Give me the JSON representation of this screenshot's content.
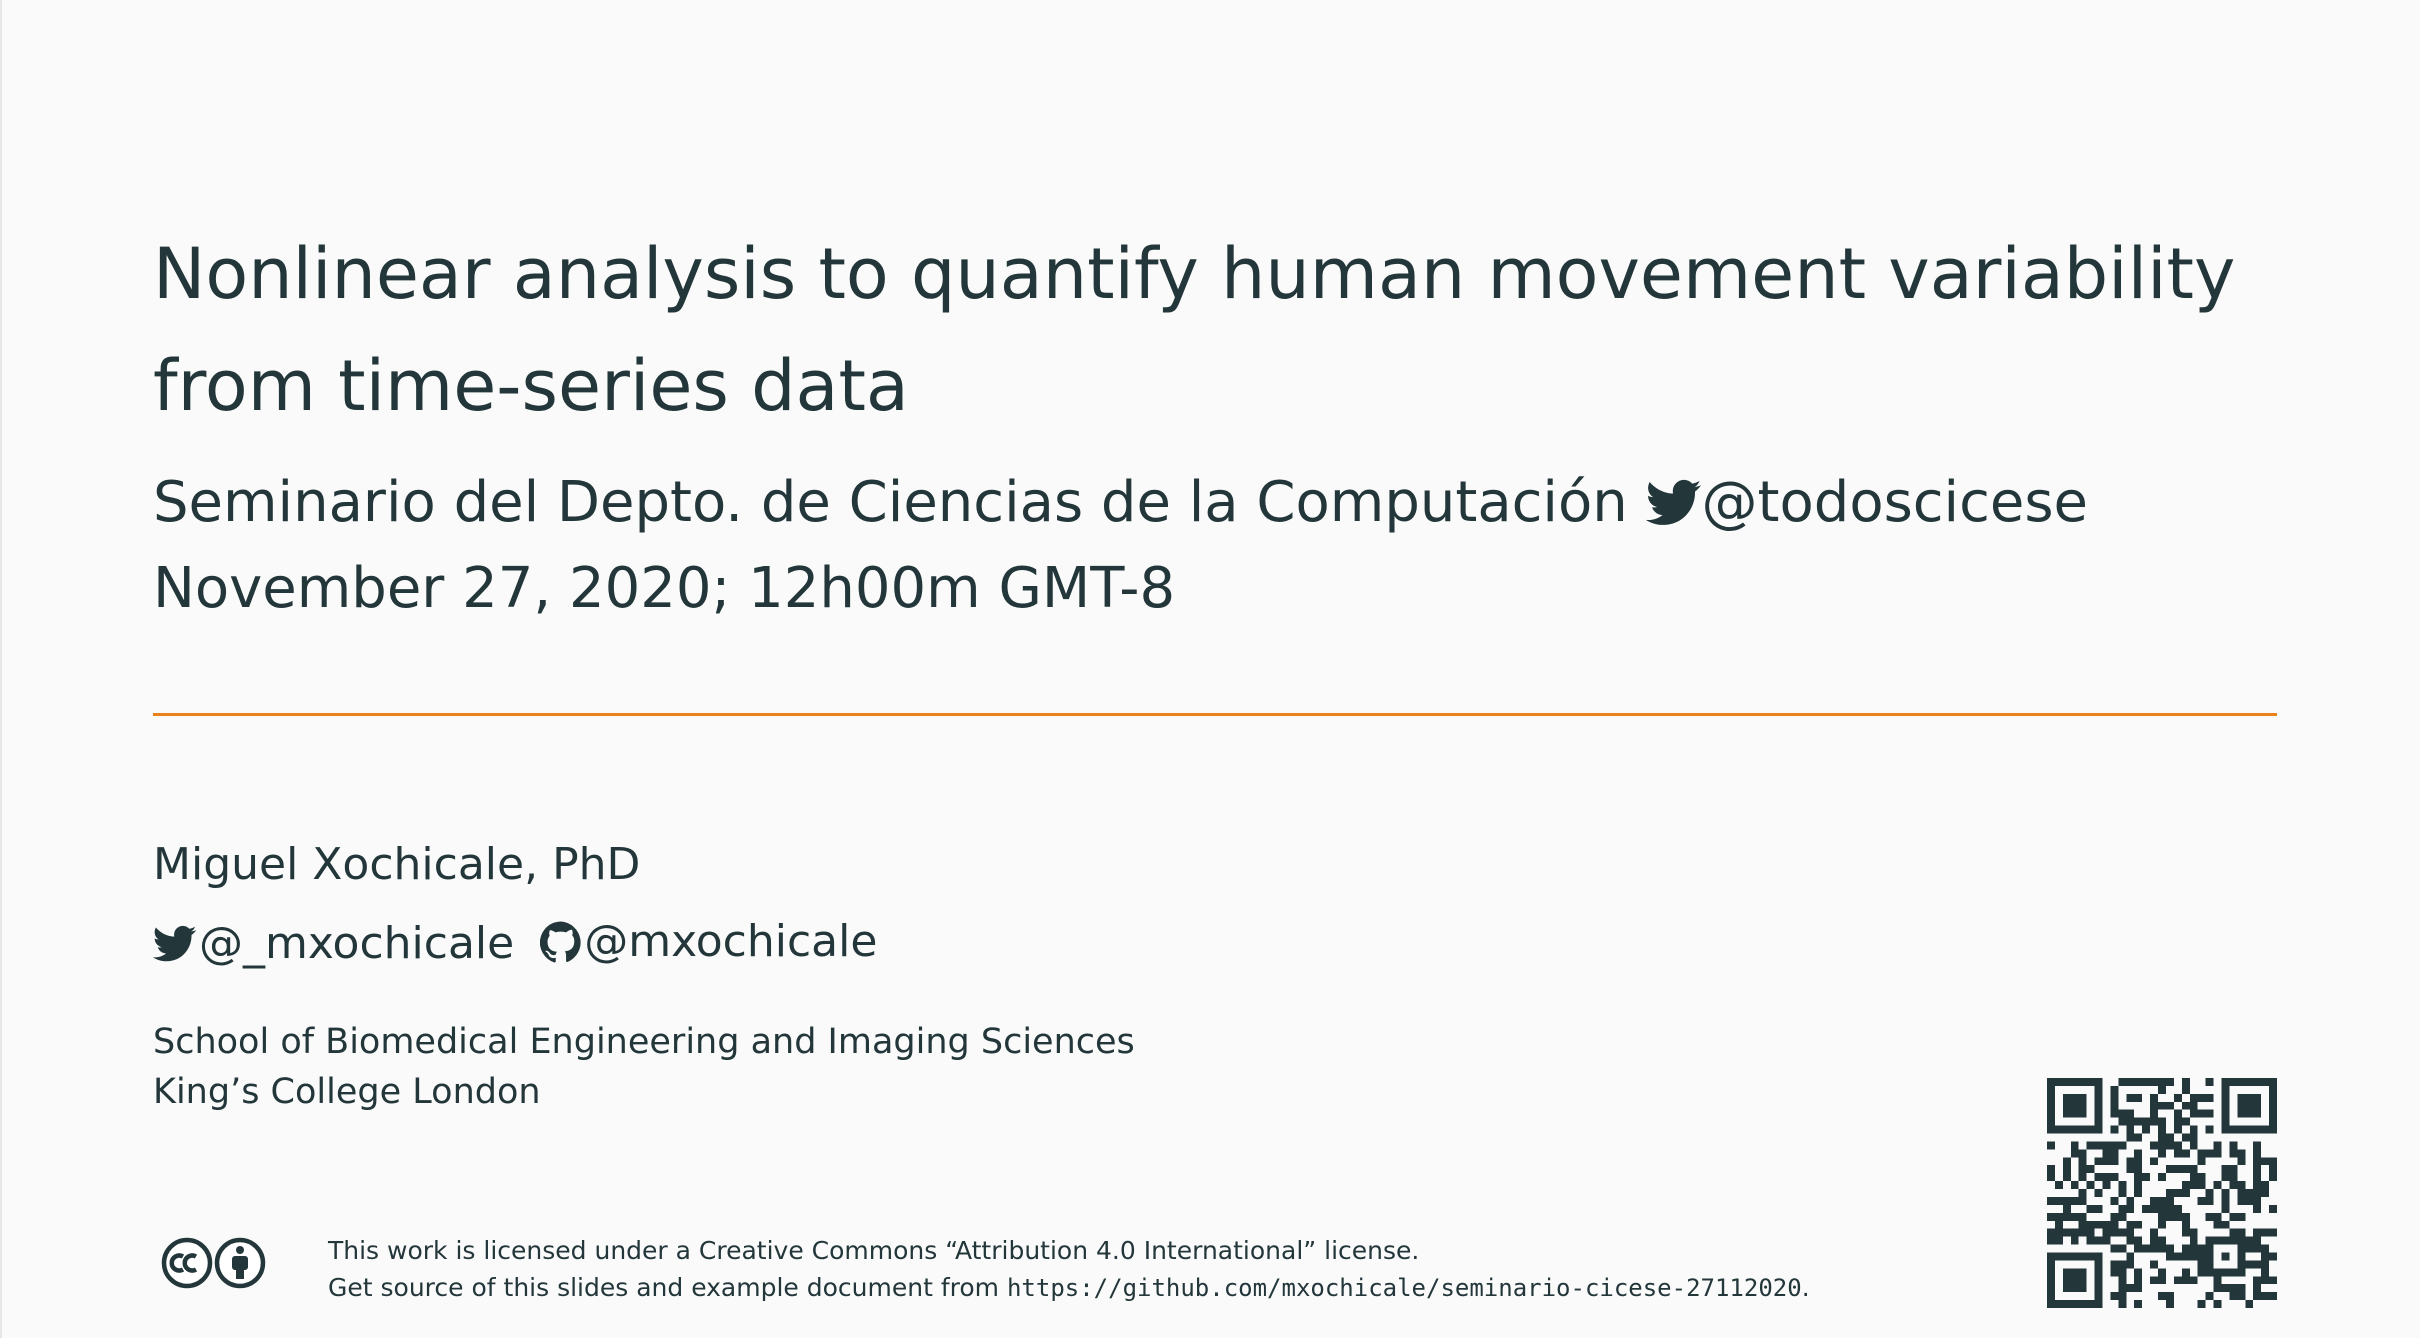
{
  "title": {
    "line1": "Nonlinear analysis to quantify human movement variability",
    "line2": "from time-series data"
  },
  "subtitle": {
    "event": "Seminario del Depto. de Ciencias de la Computación",
    "event_handle": "@todoscicese",
    "date": "November 27, 2020; 12h00m GMT-8"
  },
  "author": {
    "name": "Miguel Xochicale, PhD",
    "twitter": "@_mxochicale",
    "github": "@mxochicale"
  },
  "institute": {
    "line1": "School of Biomedical Engineering and Imaging Sciences",
    "line2": "King’s College London"
  },
  "license": {
    "line1": "This work is licensed under a Creative Commons “Attribution 4.0 International” license.",
    "line2_prefix": "Get source of this slides and example document from ",
    "url": "https://github.com/mxochicale/seminario-cicese-27112020",
    "line2_suffix": "."
  },
  "colors": {
    "text": "#23373b",
    "accent": "#eb811b",
    "background": "#fafafa"
  },
  "icons": {
    "twitter": "twitter-icon",
    "github": "github-icon",
    "cc": "cc-icon",
    "by": "attribution-icon",
    "qr": "qr-code"
  }
}
